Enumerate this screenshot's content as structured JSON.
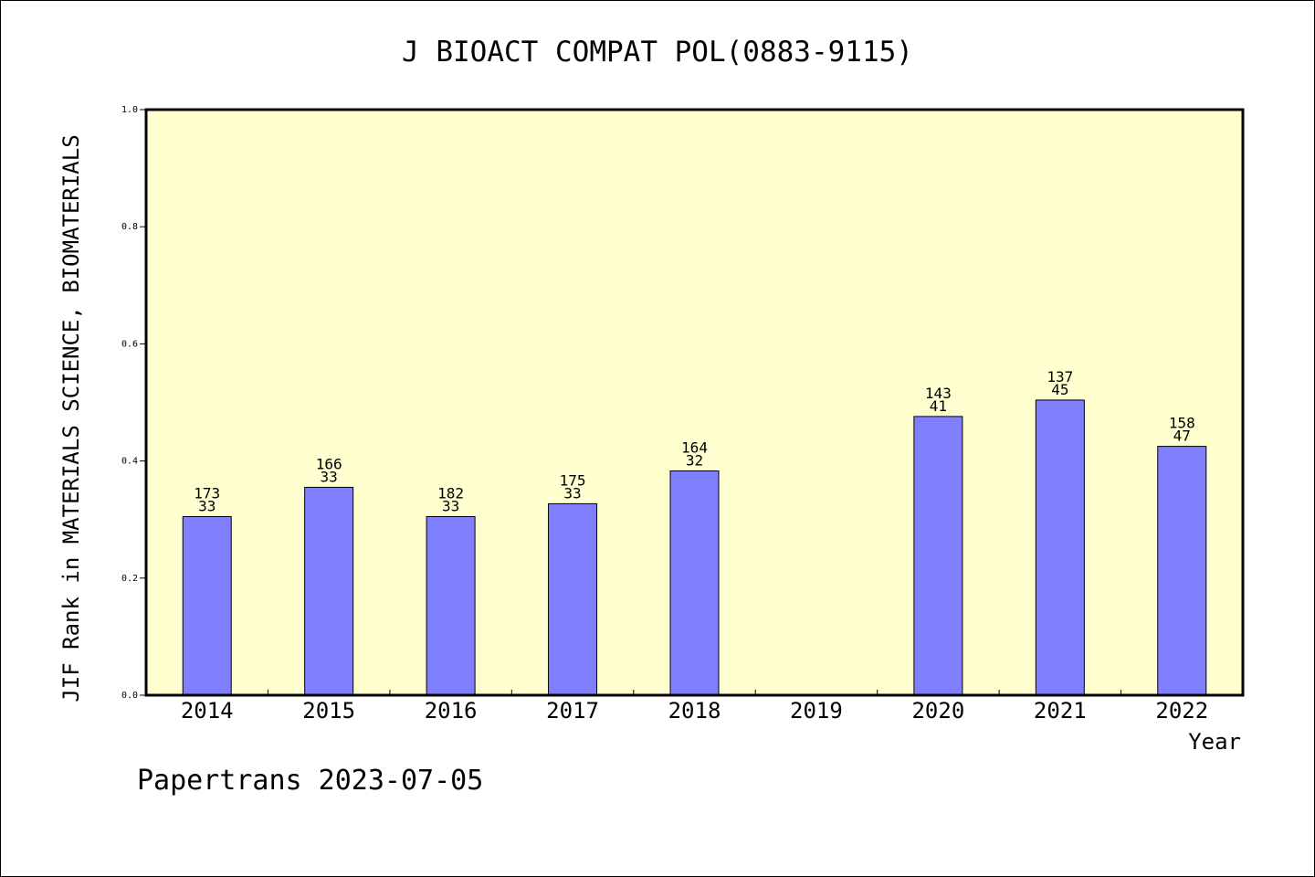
{
  "chart_data": {
    "type": "bar",
    "title": "J BIOACT COMPAT POL(0883-9115)",
    "xlabel": "Year",
    "ylabel": "JIF Rank in MATERIALS SCIENCE, BIOMATERIALS",
    "ylim": [
      0,
      1.0
    ],
    "yticks": [
      "0.0",
      "0.2",
      "0.4",
      "0.6",
      "0.8",
      "1.0"
    ],
    "categories": [
      "2014",
      "2015",
      "2016",
      "2017",
      "2018",
      "2019",
      "2020",
      "2021",
      "2022"
    ],
    "values": [
      0.305,
      0.355,
      0.305,
      0.327,
      0.383,
      null,
      0.476,
      0.504,
      0.425
    ],
    "labels": [
      [
        "173",
        "33"
      ],
      [
        "166",
        "33"
      ],
      [
        "182",
        "33"
      ],
      [
        "175",
        "33"
      ],
      [
        "164",
        "32"
      ],
      null,
      [
        "143",
        "41"
      ],
      [
        "137",
        "45"
      ],
      [
        "158",
        "47"
      ]
    ],
    "grid": false,
    "colors": {
      "bar": "#8080ff",
      "plot_background": "#ffffd0",
      "axis": "#000000"
    }
  },
  "footer": {
    "credit": "Papertrans 2023-07-05"
  }
}
